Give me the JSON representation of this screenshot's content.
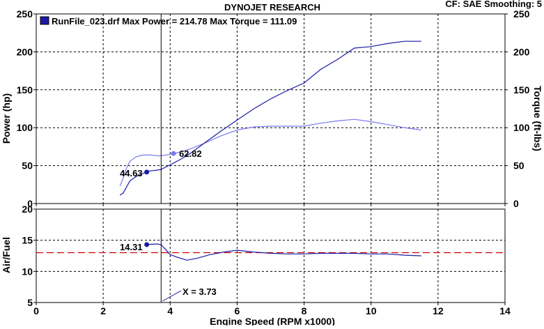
{
  "header": {
    "title": "DYNOJET RESEARCH",
    "settings": "CF: SAE  Smoothing: 5",
    "legend": "RunFile_023.drf Max Power = 214.78    Max Torque = 111.09"
  },
  "colors": {
    "power": "#1a1aa6",
    "torque": "#7a7aee",
    "afr": "#1a1aa6",
    "target_line": "#cc0000",
    "grid": "#000000"
  },
  "chart_data": [
    {
      "type": "line",
      "title": "",
      "xlabel": "Engine Speed (RPM x1000)",
      "ylabel": "Power (hp)",
      "y2label": "Torque (ft-lbs)",
      "xlim": [
        0,
        14
      ],
      "ylim": [
        0,
        250
      ],
      "y2lim": [
        0,
        250
      ],
      "x_ticks": [
        "0",
        "2",
        "4",
        "6",
        "8",
        "10",
        "12",
        "14"
      ],
      "y_ticks": [
        "0",
        "50",
        "100",
        "150",
        "200",
        "250"
      ],
      "y2_ticks": [
        "0",
        "50",
        "100",
        "150",
        "200",
        "250"
      ],
      "grid": true,
      "series": [
        {
          "name": "Power",
          "x": [
            2.5,
            2.6,
            2.7,
            2.8,
            3.0,
            3.2,
            3.4,
            3.6,
            3.73,
            4.0,
            4.3,
            4.6,
            5.0,
            5.5,
            6.0,
            6.5,
            7.0,
            7.5,
            8.0,
            8.5,
            9.0,
            9.5,
            10.0,
            10.5,
            11.0,
            11.5
          ],
          "y": [
            11,
            14,
            22,
            30,
            36,
            40,
            43,
            44,
            45,
            51,
            58,
            66,
            79,
            95,
            110,
            125,
            138,
            149,
            159,
            177,
            190,
            205,
            207,
            211,
            214,
            214
          ]
        },
        {
          "name": "Torque",
          "x": [
            2.5,
            2.6,
            2.7,
            2.8,
            3.0,
            3.2,
            3.4,
            3.6,
            3.73,
            4.0,
            4.3,
            4.6,
            5.0,
            5.5,
            6.0,
            6.5,
            7.0,
            7.5,
            8.0,
            8.5,
            9.0,
            9.5,
            10.0,
            10.5,
            11.0,
            11.5
          ],
          "y": [
            23,
            34,
            47,
            56,
            62,
            64,
            64,
            63,
            63,
            65,
            68,
            72,
            79,
            89,
            97,
            101,
            102,
            102,
            102,
            106,
            109,
            111,
            108,
            104,
            100,
            97
          ]
        }
      ],
      "annotations": [
        "44.63",
        "62.82"
      ]
    },
    {
      "type": "line",
      "title": "",
      "xlabel": "Engine Speed (RPM x1000)",
      "ylabel": "Air/Fuel",
      "xlim": [
        0,
        14
      ],
      "ylim": [
        5,
        20
      ],
      "x_ticks": [
        "0",
        "2",
        "4",
        "6",
        "8",
        "10",
        "12",
        "14"
      ],
      "y_ticks": [
        "5",
        "10",
        "15",
        "20"
      ],
      "grid": true,
      "series": [
        {
          "name": "Air/Fuel",
          "x": [
            3.3,
            3.6,
            3.73,
            3.85,
            4.0,
            4.2,
            4.5,
            4.8,
            5.2,
            5.6,
            6.0,
            6.5,
            7.0,
            7.5,
            8.0,
            8.5,
            9.0,
            9.5,
            10.0,
            10.5,
            11.0,
            11.5
          ],
          "y": [
            14.3,
            14.4,
            14.3,
            13.6,
            12.7,
            12.3,
            11.8,
            12.1,
            12.7,
            13.1,
            13.4,
            13.1,
            12.9,
            12.8,
            12.8,
            12.9,
            12.9,
            12.9,
            12.8,
            12.8,
            12.6,
            12.5
          ]
        }
      ],
      "target": 13.0,
      "annotations": [
        "14.31"
      ]
    }
  ],
  "cursor": {
    "x": 3.73,
    "label": "X = 3.73"
  }
}
